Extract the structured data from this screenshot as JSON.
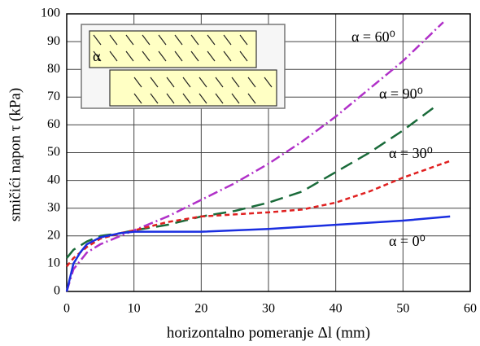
{
  "chart_data": {
    "type": "line",
    "xlabel": "horizontalno pomeranje  Δl  (mm)",
    "ylabel": "smičići napon  τ  (kPa)",
    "inset_label": "α",
    "annotations": [
      "α = 60⁰",
      "α = 90⁰",
      "α = 30⁰",
      "α = 0⁰"
    ],
    "xlim": [
      0,
      60
    ],
    "xticks": [
      0,
      10,
      20,
      30,
      40,
      50,
      60
    ],
    "ylim": [
      0,
      100
    ],
    "yticks": [
      0,
      10,
      20,
      30,
      40,
      50,
      60,
      70,
      80,
      90,
      100
    ],
    "grid": true,
    "series": [
      {
        "name": "α = 60⁰",
        "color": "#b030c8",
        "dash": "12 4 2 4",
        "x": [
          0,
          1,
          3,
          5,
          8,
          10,
          15,
          20,
          25,
          30,
          35,
          40,
          45,
          50,
          56
        ],
        "values": [
          0,
          8,
          14,
          17,
          20,
          22,
          27,
          33,
          39,
          46,
          54,
          63,
          73,
          83,
          97
        ]
      },
      {
        "name": "α = 90⁰",
        "color": "#1a6b3a",
        "dash": "16 8",
        "x": [
          0,
          1,
          3,
          5,
          8,
          10,
          15,
          20,
          25,
          30,
          35,
          40,
          45,
          50,
          55
        ],
        "values": [
          12,
          15,
          18,
          20,
          21,
          22,
          24,
          27,
          29,
          32,
          36,
          43,
          50,
          58,
          67
        ]
      },
      {
        "name": "α = 30⁰",
        "color": "#e02020",
        "dash": "6 4",
        "x": [
          0,
          1,
          3,
          5,
          8,
          10,
          15,
          20,
          30,
          35,
          40,
          45,
          50,
          57
        ],
        "values": [
          9,
          12,
          16,
          19,
          21,
          22,
          25,
          27,
          28.5,
          29.5,
          32,
          36,
          41,
          47
        ]
      },
      {
        "name": "α = 0⁰",
        "color": "#1a2ee0",
        "dash": "",
        "x": [
          0,
          0.5,
          1,
          2,
          3,
          5,
          8,
          10,
          20,
          30,
          40,
          50,
          57
        ],
        "values": [
          0,
          5,
          10,
          14,
          17,
          19.5,
          21,
          21.5,
          21.5,
          22.5,
          24,
          25.5,
          27
        ]
      }
    ]
  }
}
